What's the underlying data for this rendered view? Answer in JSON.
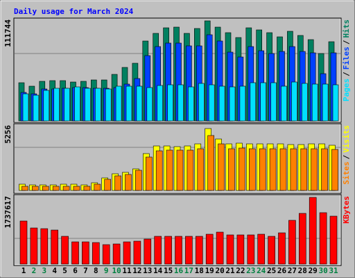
{
  "chart_data": [
    {
      "type": "bar",
      "title": "Daily usage for March 2024",
      "ylim": [
        0,
        111744
      ],
      "yticks": [
        111744
      ],
      "legend_separator": "/",
      "series": [
        {
          "name": "Hits",
          "color": "#008060",
          "values": [
            42680,
            38800,
            44232,
            45008,
            45008,
            43456,
            44232,
            45784,
            45784,
            51992,
            59752,
            64408,
            89240,
            97776,
            103984,
            104760,
            97776,
            103208,
            111744,
            104760,
            98552,
            93120,
            103984,
            101656,
            98552,
            93896,
            100104,
            95448,
            90792,
            75272,
            88464
          ]
        },
        {
          "name": "Files",
          "color": "#0040ff",
          "values": [
            31816,
            30264,
            35696,
            35696,
            36472,
            37248,
            37248,
            36472,
            36472,
            37248,
            41128,
            47336,
            72944,
            83032,
            86912,
            86912,
            83808,
            83808,
            96224,
            89240,
            76824,
            71392,
            83032,
            78376,
            75272,
            77600,
            83032,
            77600,
            76048,
            52768,
            76048
          ]
        },
        {
          "name": "Pages",
          "color": "#00e0ff",
          "values": [
            30264,
            28712,
            34144,
            36472,
            36472,
            38024,
            36472,
            36472,
            35696,
            38800,
            38800,
            38800,
            37248,
            39576,
            40352,
            40352,
            38024,
            41904,
            40352,
            38800,
            38024,
            38800,
            42680,
            42680,
            42680,
            38800,
            43456,
            41904,
            41128,
            41128,
            40352
          ]
        }
      ]
    },
    {
      "type": "bar",
      "ylim": [
        0,
        5256
      ],
      "yticks": [
        5256
      ],
      "legend_separator": "/",
      "series": [
        {
          "name": "Visits",
          "color": "#ffff00",
          "values": [
            531,
            472,
            472,
            472,
            531,
            531,
            472,
            650,
            1063,
            1417,
            1536,
            1831,
            3130,
            3780,
            3780,
            3721,
            3780,
            3957,
            5256,
            4370,
            3957,
            4016,
            3957,
            3957,
            3957,
            3957,
            3898,
            3898,
            3957,
            3957,
            3839
          ]
        },
        {
          "name": "Sites",
          "color": "#ff8000",
          "values": [
            354,
            354,
            354,
            354,
            354,
            354,
            354,
            531,
            945,
            1240,
            1358,
            1713,
            2835,
            3366,
            3425,
            3425,
            3425,
            3543,
            4666,
            3957,
            3543,
            3602,
            3543,
            3543,
            3543,
            3543,
            3543,
            3543,
            3543,
            3543,
            3484
          ]
        }
      ]
    },
    {
      "type": "bar",
      "ylim": [
        0,
        1737617
      ],
      "yticks": [
        1737617
      ],
      "categories": [
        "1",
        "2",
        "3",
        "4",
        "5",
        "6",
        "7",
        "8",
        "9",
        "10",
        "11",
        "12",
        "13",
        "14",
        "15",
        "16",
        "17",
        "18",
        "19",
        "20",
        "21",
        "22",
        "23",
        "24",
        "25",
        "26",
        "27",
        "28",
        "29",
        "30",
        "31"
      ],
      "category_colors": [
        "#000000",
        "#008040",
        "#008040",
        "#000000",
        "#000000",
        "#000000",
        "#000000",
        "#000000",
        "#008040",
        "#008040",
        "#000000",
        "#000000",
        "#000000",
        "#000000",
        "#000000",
        "#008040",
        "#008040",
        "#000000",
        "#000000",
        "#000000",
        "#000000",
        "#000000",
        "#008040",
        "#008040",
        "#000000",
        "#000000",
        "#000000",
        "#000000",
        "#000000",
        "#008040",
        "#008040"
      ],
      "series": [
        {
          "name": "KBytes",
          "color": "#ff0000",
          "values": [
            1122200,
            941200,
            923100,
            886900,
            724000,
            579200,
            579200,
            561100,
            506800,
            524900,
            579200,
            597300,
            651600,
            724000,
            724000,
            724000,
            724000,
            724000,
            778300,
            832600,
            760200,
            760200,
            760200,
            778300,
            724000,
            814500,
            1140300,
            1321300,
            1737617,
            1339400,
            1248900
          ]
        }
      ]
    }
  ]
}
